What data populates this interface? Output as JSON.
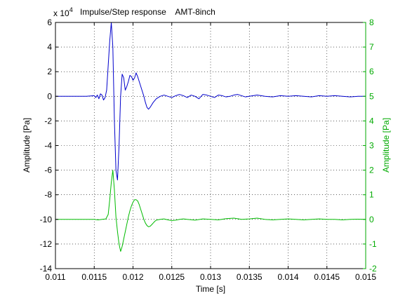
{
  "chart_data": {
    "type": "line",
    "title": "Impulse/Step response    AMT-8inch",
    "left_axis_exponent_prefix": "x 10",
    "left_axis_exponent_power": "4",
    "xlabel": "Time [s]",
    "ylabel_left": "Amplitude [Pa]",
    "ylabel_right": "Amplitude [Pa]",
    "xlim": [
      0.011,
      0.015
    ],
    "ylim_left": [
      -14,
      6
    ],
    "ylim_right": [
      -2,
      8
    ],
    "x_ticks": [
      "0.011",
      "0.0115",
      "0.012",
      "0.0125",
      "0.013",
      "0.0135",
      "0.014",
      "0.0145",
      "0.015"
    ],
    "y_left_ticks": [
      "-14",
      "-12",
      "-10",
      "-8",
      "-6",
      "-4",
      "-2",
      "0",
      "2",
      "4",
      "6"
    ],
    "y_right_ticks": [
      "-2",
      "-1",
      "0",
      "1",
      "2",
      "3",
      "4",
      "5",
      "6",
      "7",
      "8"
    ],
    "grid": true,
    "colors": {
      "impulse": "#0000cc",
      "step": "#00bb00",
      "right_axis": "#00aa00"
    },
    "series": [
      {
        "axis": "left",
        "color": "#0000cc",
        "x": [
          0.011,
          0.0114,
          0.0115,
          0.01152,
          0.01154,
          0.01156,
          0.01158,
          0.0116,
          0.01162,
          0.01164,
          0.01166,
          0.01168,
          0.0117,
          0.01172,
          0.01174,
          0.01176,
          0.01178,
          0.0118,
          0.01182,
          0.01184,
          0.01186,
          0.01188,
          0.0119,
          0.01192,
          0.01194,
          0.01196,
          0.01198,
          0.012,
          0.01202,
          0.01204,
          0.01206,
          0.01208,
          0.0121,
          0.01212,
          0.01214,
          0.01216,
          0.01218,
          0.0122,
          0.01222,
          0.01224,
          0.01226,
          0.0123,
          0.01235,
          0.0124,
          0.01245,
          0.0125,
          0.01255,
          0.0126,
          0.01265,
          0.0127,
          0.01275,
          0.0128,
          0.01285,
          0.0129,
          0.01295,
          0.013,
          0.01305,
          0.0131,
          0.01315,
          0.0132,
          0.01325,
          0.0133,
          0.01335,
          0.0134,
          0.01345,
          0.0135,
          0.01355,
          0.0136,
          0.0137,
          0.0138,
          0.0139,
          0.014,
          0.0141,
          0.0142,
          0.0143,
          0.0144,
          0.0145,
          0.0146,
          0.0147,
          0.0148,
          0.0149,
          0.015
        ],
        "y": [
          0.0,
          0.0,
          0.05,
          -0.1,
          0.1,
          -0.2,
          0.2,
          0.1,
          -0.3,
          -0.1,
          0.5,
          2.5,
          4.5,
          6.0,
          4.0,
          -2.0,
          -6.0,
          -6.8,
          -4.0,
          0.0,
          1.8,
          1.5,
          0.5,
          0.8,
          1.2,
          1.7,
          1.6,
          1.3,
          1.5,
          1.9,
          1.6,
          1.2,
          0.8,
          0.4,
          0.0,
          -0.5,
          -0.9,
          -1.05,
          -0.9,
          -0.7,
          -0.5,
          -0.2,
          0.0,
          0.1,
          0.0,
          -0.1,
          0.05,
          0.15,
          0.05,
          -0.1,
          0.1,
          0.0,
          -0.2,
          0.15,
          0.1,
          0.0,
          -0.1,
          0.1,
          0.05,
          -0.05,
          0.0,
          0.1,
          0.15,
          0.05,
          -0.05,
          0.0,
          0.05,
          0.1,
          0.0,
          -0.05,
          0.05,
          0.0,
          0.05,
          0.0,
          -0.05,
          0.05,
          0.0,
          0.05,
          0.0,
          -0.05,
          0.0,
          0.0
        ]
      },
      {
        "axis": "right",
        "color": "#00bb00",
        "x": [
          0.011,
          0.0114,
          0.0115,
          0.01155,
          0.0116,
          0.01165,
          0.01168,
          0.0117,
          0.01172,
          0.01174,
          0.01176,
          0.01178,
          0.0118,
          0.01182,
          0.01184,
          0.01186,
          0.01188,
          0.0119,
          0.01192,
          0.01194,
          0.01196,
          0.01198,
          0.012,
          0.01202,
          0.01204,
          0.01206,
          0.01208,
          0.0121,
          0.01212,
          0.01214,
          0.01216,
          0.01218,
          0.0122,
          0.01222,
          0.01224,
          0.01226,
          0.01228,
          0.0123,
          0.01235,
          0.0124,
          0.01245,
          0.0125,
          0.01255,
          0.0126,
          0.01265,
          0.0127,
          0.0128,
          0.0129,
          0.013,
          0.0131,
          0.0132,
          0.0133,
          0.0134,
          0.0135,
          0.0136,
          0.0137,
          0.0138,
          0.0139,
          0.014,
          0.0141,
          0.0142,
          0.0143,
          0.0144,
          0.0145,
          0.0146,
          0.0147,
          0.0148,
          0.0149,
          0.015
        ],
        "y": [
          0.0,
          0.0,
          0.0,
          -0.02,
          0.0,
          0.02,
          0.2,
          0.8,
          1.5,
          2.0,
          1.2,
          0.1,
          -0.5,
          -1.0,
          -1.3,
          -1.1,
          -0.8,
          -0.5,
          -0.2,
          0.1,
          0.35,
          0.55,
          0.7,
          0.8,
          0.8,
          0.75,
          0.6,
          0.4,
          0.2,
          0.0,
          -0.15,
          -0.25,
          -0.3,
          -0.28,
          -0.22,
          -0.15,
          -0.08,
          -0.03,
          0.0,
          0.02,
          -0.02,
          -0.05,
          -0.03,
          0.0,
          0.02,
          0.0,
          -0.03,
          0.02,
          0.0,
          -0.02,
          0.03,
          0.05,
          0.0,
          0.02,
          0.05,
          0.0,
          -0.02,
          0.0,
          0.02,
          0.0,
          -0.02,
          0.0,
          0.02,
          0.0,
          0.0,
          -0.02,
          0.0,
          0.01,
          0.0
        ]
      }
    ]
  }
}
